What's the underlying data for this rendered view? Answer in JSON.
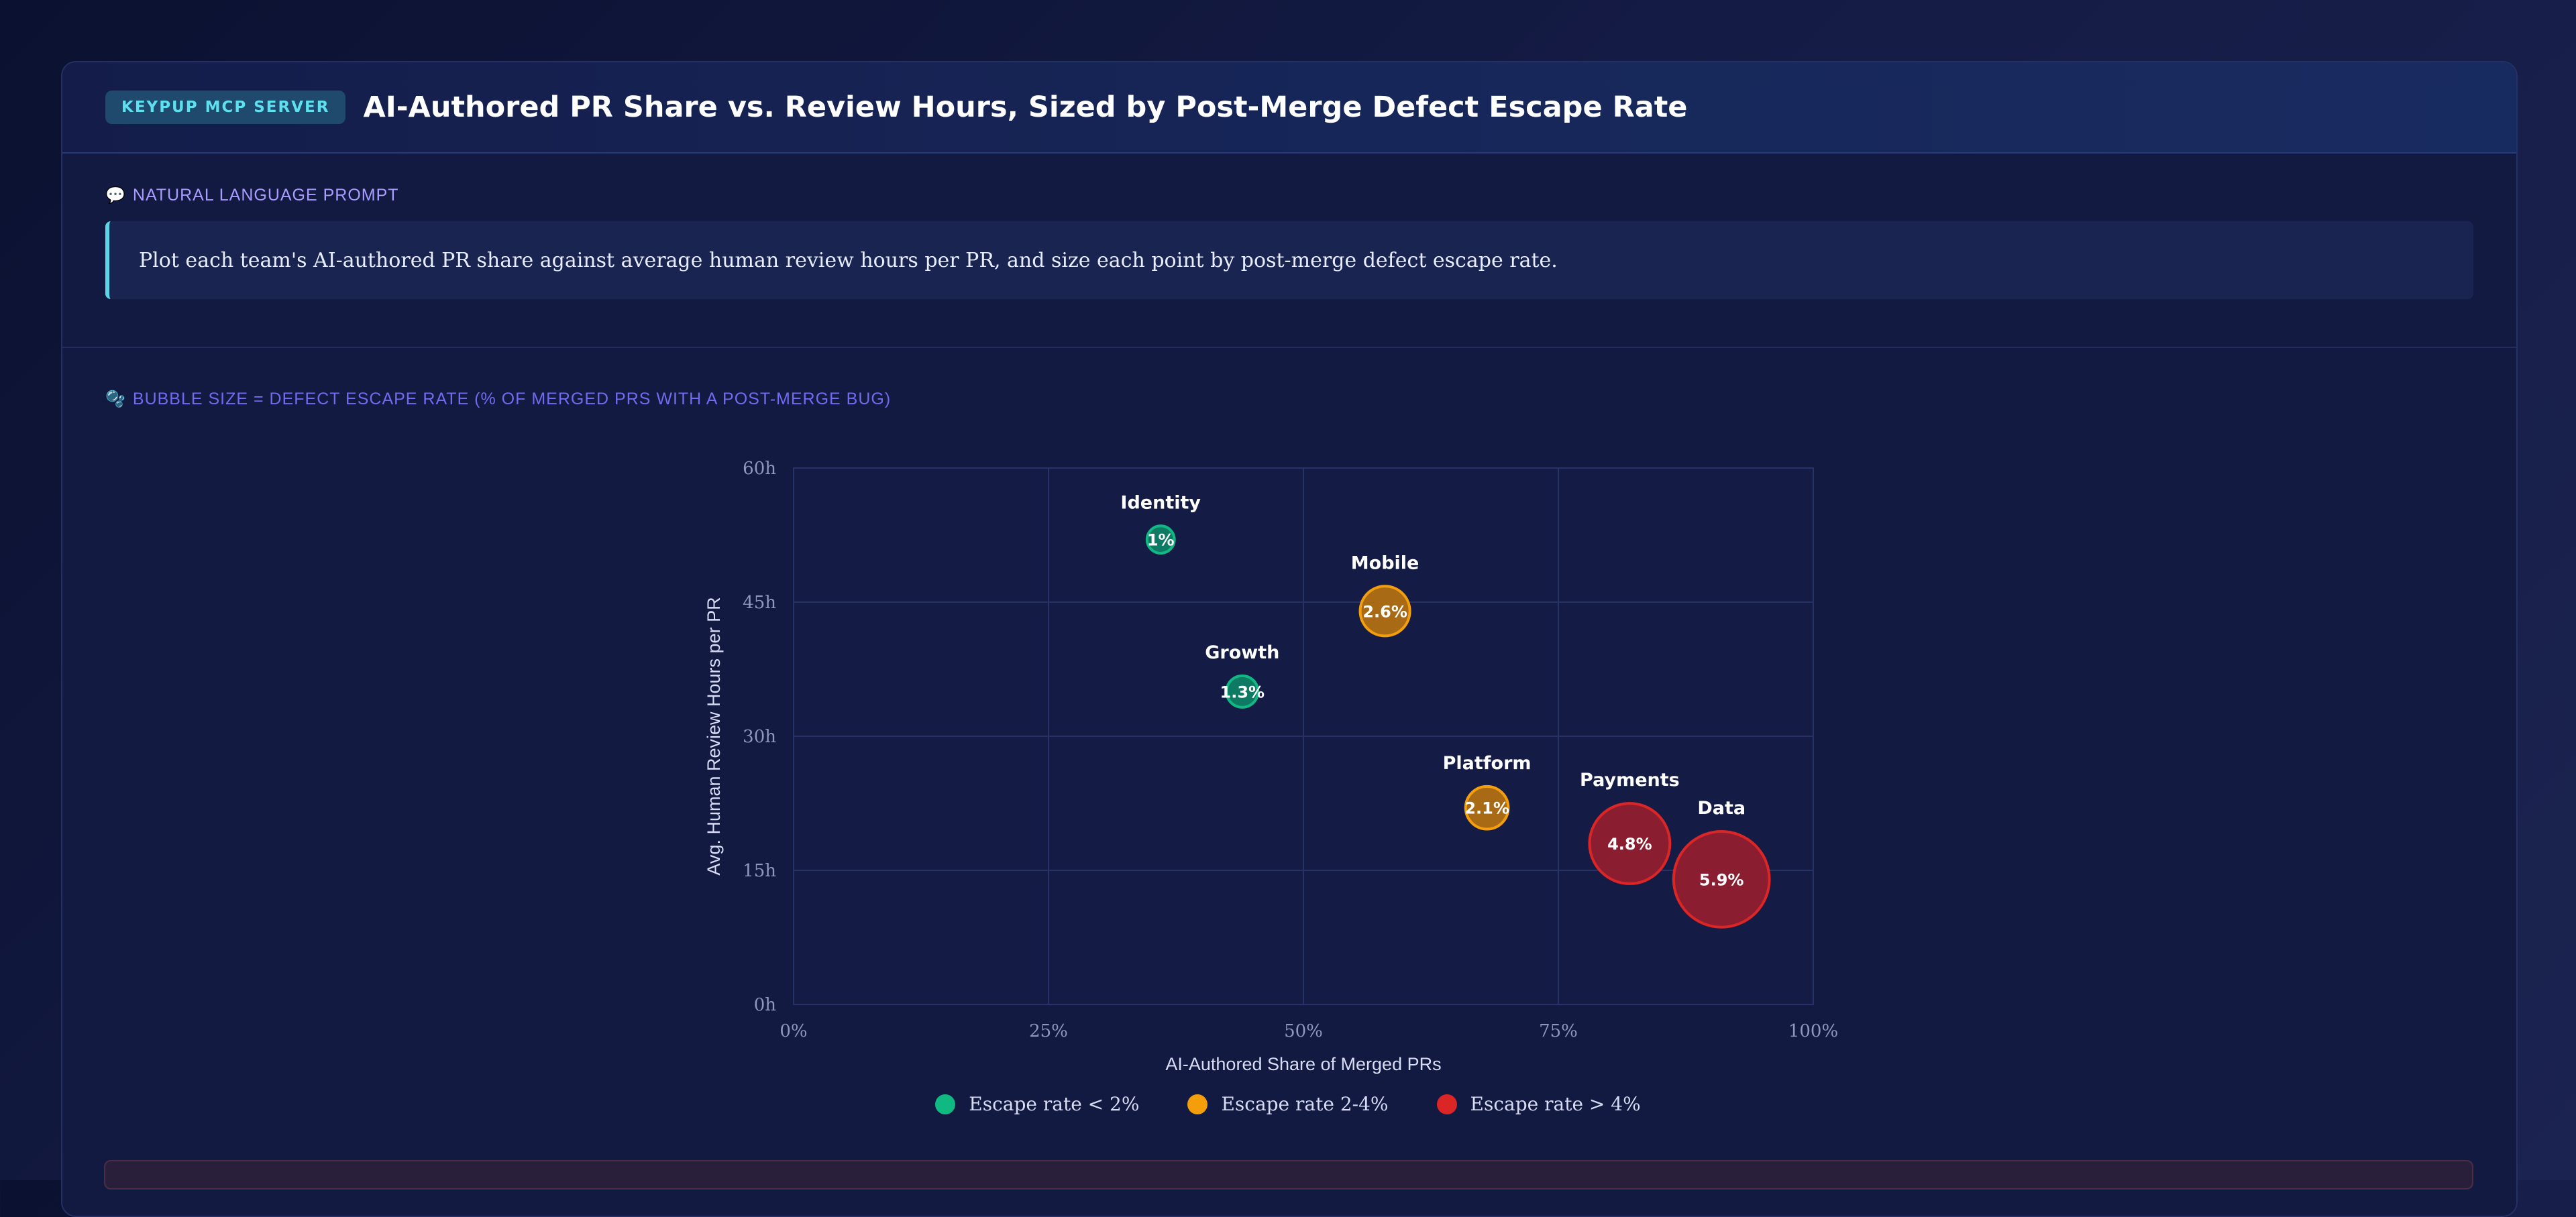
{
  "header": {
    "badge": "KEYPUP MCP SERVER",
    "title": "AI-Authored PR Share vs. Review Hours, Sized by Post-Merge Defect Escape Rate"
  },
  "prompt": {
    "label": "NATURAL LANGUAGE PROMPT",
    "icon": "speech-bubble-icon",
    "text": "Plot each team's AI-authored PR share against average human review hours per PR, and size each point by post-merge defect escape rate."
  },
  "chart_section": {
    "label": "BUBBLE SIZE = DEFECT ESCAPE RATE (% OF MERGED PRS WITH A POST-MERGE BUG)",
    "icon": "bubbles-icon"
  },
  "colors": {
    "low": "#10b981",
    "mid": "#f59e0b",
    "high": "#dc2626"
  },
  "chart_data": {
    "type": "scatter",
    "xlabel": "AI-Authored Share of Merged PRs",
    "ylabel": "Avg. Human Review Hours per PR",
    "xlim": [
      0,
      100
    ],
    "ylim": [
      0,
      60
    ],
    "x_ticks": [
      {
        "value": 0,
        "label": "0%"
      },
      {
        "value": 25,
        "label": "25%"
      },
      {
        "value": 50,
        "label": "50%"
      },
      {
        "value": 75,
        "label": "75%"
      },
      {
        "value": 100,
        "label": "100%"
      }
    ],
    "y_ticks": [
      {
        "value": 0,
        "label": "0h"
      },
      {
        "value": 15,
        "label": "15h"
      },
      {
        "value": 30,
        "label": "30h"
      },
      {
        "value": 45,
        "label": "45h"
      },
      {
        "value": 60,
        "label": "60h"
      }
    ],
    "grid": true,
    "legend_position": "bottom-center",
    "legend": [
      {
        "label": "Escape rate < 2%",
        "group": "low"
      },
      {
        "label": "Escape rate 2-4%",
        "group": "mid"
      },
      {
        "label": "Escape rate > 4%",
        "group": "high"
      }
    ],
    "points": [
      {
        "team": "Identity",
        "x": 36,
        "y": 52,
        "size": 1.0,
        "size_label": "1%",
        "group": "low"
      },
      {
        "team": "Growth",
        "x": 44,
        "y": 35,
        "size": 1.3,
        "size_label": "1.3%",
        "group": "low"
      },
      {
        "team": "Mobile",
        "x": 58,
        "y": 44,
        "size": 2.6,
        "size_label": "2.6%",
        "group": "mid"
      },
      {
        "team": "Platform",
        "x": 68,
        "y": 22,
        "size": 2.1,
        "size_label": "2.1%",
        "group": "mid"
      },
      {
        "team": "Payments",
        "x": 82,
        "y": 18,
        "size": 4.8,
        "size_label": "4.8%",
        "group": "high"
      },
      {
        "team": "Data",
        "x": 91,
        "y": 14,
        "size": 5.9,
        "size_label": "5.9%",
        "group": "high"
      }
    ]
  }
}
